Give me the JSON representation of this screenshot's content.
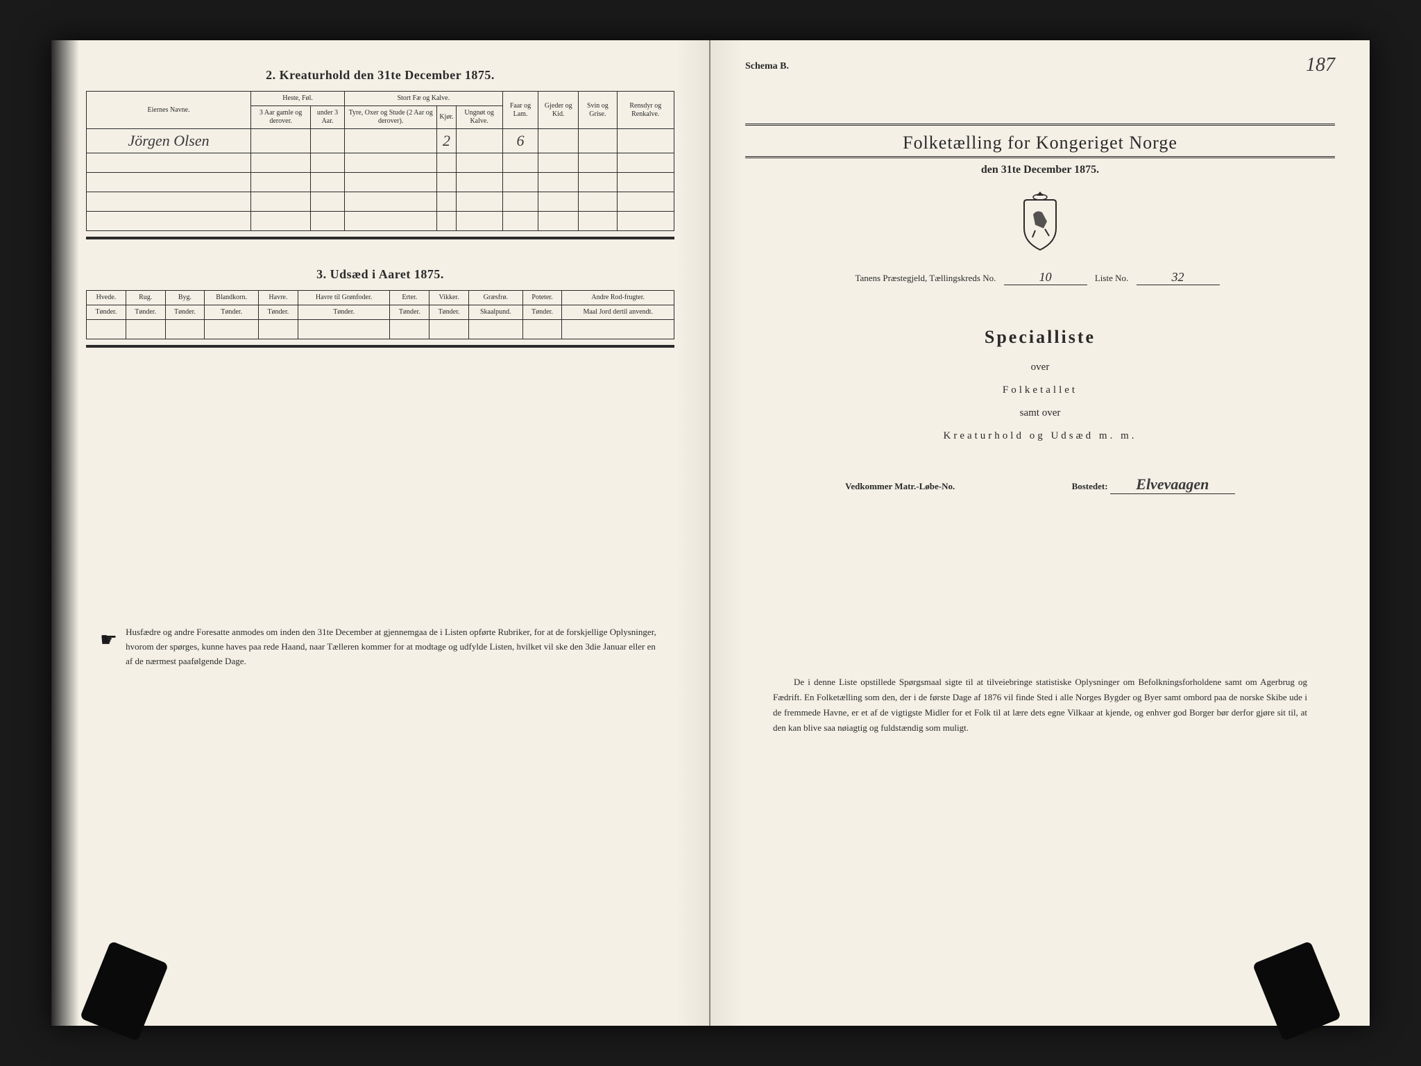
{
  "page_number": "187",
  "left": {
    "section2": {
      "title": "2.  Kreaturhold den 31te December 1875.",
      "col_owner": "Eiernes Navne.",
      "group_heste": "Heste, Føl.",
      "group_stort": "Stort Fæ og Kalve.",
      "col_heste_a": "3 Aar gamle og derover.",
      "col_heste_b": "under 3 Aar.",
      "col_stort_a": "Tyre, Oxer og Stude (2 Aar og derover).",
      "col_stort_b": "Kjør.",
      "col_stort_c": "Ungnøt og Kalve.",
      "col_faar": "Faar og Lam.",
      "col_gjeder": "Gjeder og Kid.",
      "col_svin": "Svin og Grise.",
      "col_rensdyr": "Rensdyr og Renkalve.",
      "rows": [
        {
          "name": "Jörgen Olsen",
          "v": [
            "",
            "",
            "",
            "2",
            "",
            "6",
            "",
            "",
            ""
          ]
        },
        {
          "name": "",
          "v": [
            "",
            "",
            "",
            "",
            "",
            "",
            "",
            "",
            ""
          ]
        },
        {
          "name": "",
          "v": [
            "",
            "",
            "",
            "",
            "",
            "",
            "",
            "",
            ""
          ]
        },
        {
          "name": "",
          "v": [
            "",
            "",
            "",
            "",
            "",
            "",
            "",
            "",
            ""
          ]
        },
        {
          "name": "",
          "v": [
            "",
            "",
            "",
            "",
            "",
            "",
            "",
            "",
            ""
          ]
        }
      ]
    },
    "section3": {
      "title": "3.  Udsæd i Aaret 1875.",
      "cols": [
        "Hvede.",
        "Rug.",
        "Byg.",
        "Blandkorn.",
        "Havre.",
        "Havre til Grønfoder.",
        "Erter.",
        "Vikker.",
        "Græsfrø.",
        "Poteter.",
        "Andre Rod-frugter."
      ],
      "unit": "Tønder.",
      "unit_graes": "Skaalpund.",
      "unit_andre": "Maal Jord dertil anvendt."
    },
    "footer": "Husfædre og andre Foresatte anmodes om inden den 31te December at gjennemgaa de i Listen opførte Rubriker, for at de forskjellige Oplysninger, hvorom der spørges, kunne haves paa rede Haand, naar Tælleren kommer for at modtage og udfylde Listen, hvilket vil ske den 3die Januar eller en af de nærmest paafølgende Dage."
  },
  "right": {
    "schema": "Schema B.",
    "header": "Folketælling for Kongeriget Norge",
    "subheader": "den 31te December 1875.",
    "kreds_prefix": "Tanens Præstegjeld,  Tællingskreds No.",
    "kreds_no": "10",
    "liste_label": "Liste No.",
    "liste_no": "32",
    "special": "Specialliste",
    "over": "over",
    "folketallet": "Folketallet",
    "samt": "samt over",
    "kreatur": "Kreaturhold og Udsæd  m. m.",
    "matr_label": "Vedkommer Matr.-Løbe-No.",
    "bosted_label": "Bostedet:",
    "bosted_value": "Elvevaagen",
    "footer": "De i denne Liste opstillede Spørgsmaal sigte til at tilveiebringe statistiske Oplysninger om Befolkningsforholdene samt om Agerbrug og Fædrift.  En Folketælling som den, der i de første Dage af 1876 vil finde Sted i alle Norges Bygder og Byer samt ombord paa de norske Skibe ude i de fremmede Havne, er et af de vigtigste Midler for et Folk til at lære dets egne Vilkaar at kjende, og enhver god Borger bør derfor gjøre sit til, at den kan blive saa nøiagtig og fuldstændig som muligt."
  },
  "colors": {
    "paper": "#f4f0e6",
    "ink": "#2a2a2a",
    "background": "#1a1a1a"
  }
}
